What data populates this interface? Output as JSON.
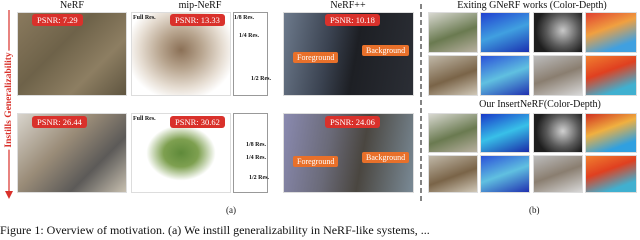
{
  "columns": {
    "nerf": "NeRF",
    "mipnerf": "mip-NeRF",
    "nerfpp": "NeRF++",
    "existing": "Exiting GNeRF works (Color-Depth)",
    "ours": "Our InsertNeRF(Color-Depth)"
  },
  "side_label": "Instills Generalizability",
  "top_row": {
    "nerf_psnr": "PSNR: 7.29",
    "mipnerf_psnr": "PSNR: 13.33",
    "nerfpp_psnr": "PSNR: 10.18",
    "resolution_labels": [
      "Full Res.",
      "1/8 Res.",
      "1/4 Res.",
      "1/2 Res."
    ],
    "region_labels": [
      "Foreground",
      "Background"
    ]
  },
  "bottom_row": {
    "nerf_psnr": "PSNR: 26.44",
    "mipnerf_psnr": "PSNR: 30.62",
    "nerfpp_psnr": "PSNR: 24.06",
    "resolution_labels": [
      "Full Res.",
      "1/8 Res.",
      "1/4 Res.",
      "1/2 Res."
    ],
    "region_labels": [
      "Foreground",
      "Background"
    ]
  },
  "panel_labels": [
    "(a)",
    "(b)"
  ],
  "caption": "Figure 1: Overview of motivation. (a) We instill generalizability in NeRF-like systems, ..."
}
